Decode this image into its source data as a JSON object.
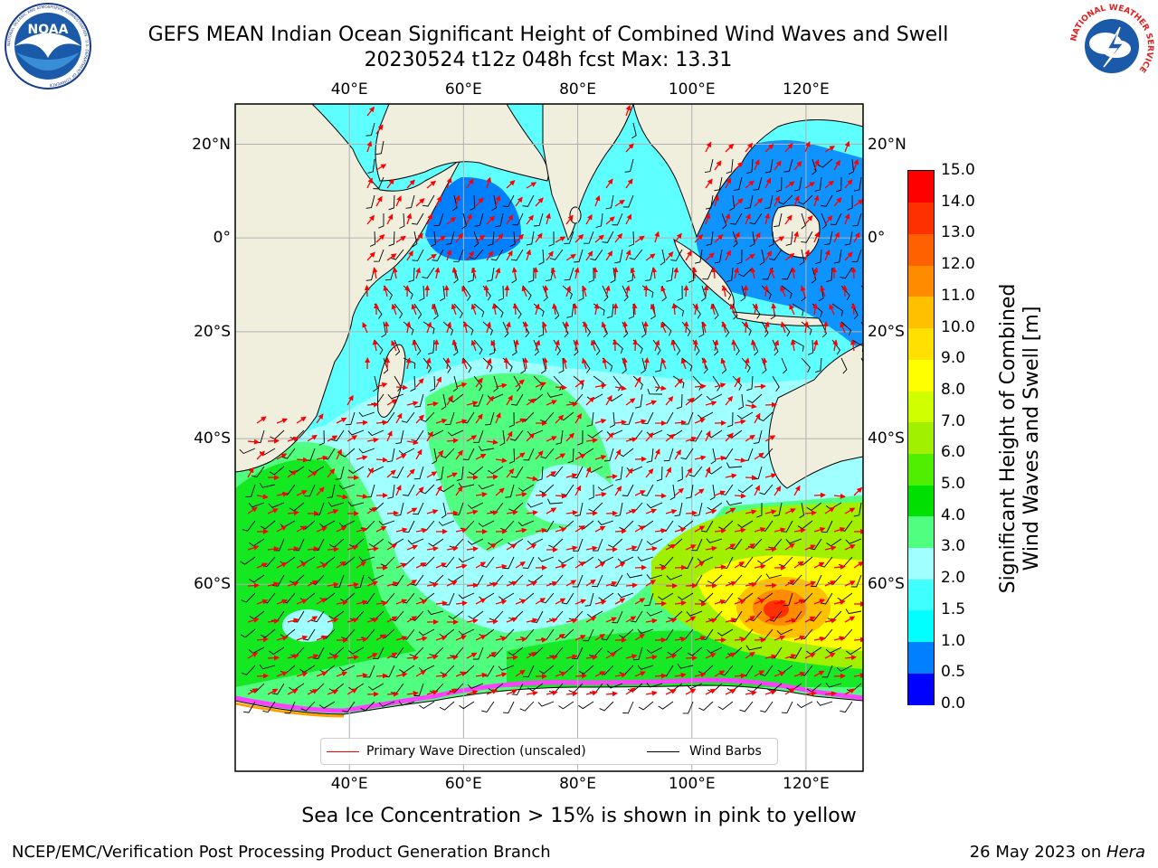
{
  "header": {
    "title_line1": "GEFS MEAN Indian Ocean Significant Height of Combined Wind Waves and Swell",
    "title_line2": "20230524 t12z 048h fcst   Max: 13.31"
  },
  "logos": {
    "left_icon": "noaa-logo-icon",
    "left_text": "NOAA",
    "left_ring_text": "NATIONAL OCEANIC AND ATMOSPHERIC ADMINISTRATION · U.S. DEPARTMENT OF COMMERCE",
    "right_icon": "national-weather-service-logo-icon",
    "right_ring_text": "NATIONAL WEATHER SERVICE"
  },
  "map": {
    "lon_range": [
      20,
      130
    ],
    "lat_range": [
      -75,
      28
    ],
    "top_lon_ticks": [
      "40°E",
      "60°E",
      "80°E",
      "100°E",
      "120°E"
    ],
    "bottom_lon_ticks": [
      "40°E",
      "60°E",
      "80°E",
      "100°E",
      "120°E"
    ],
    "left_lat_ticks": [
      "20°N",
      "0°",
      "20°S",
      "40°S",
      "60°S"
    ],
    "right_lat_ticks": [
      "20°N",
      "0°",
      "20°S",
      "40°S",
      "60°S"
    ],
    "lon_values": [
      40,
      60,
      80,
      100,
      120
    ],
    "lat_values": [
      20,
      0,
      -20,
      -40,
      -60
    ],
    "land_color": "#f0eedc",
    "ice_color": "#ffffff",
    "arrow_color": "#ff0000",
    "barb_color": "#000000"
  },
  "legend": {
    "wave_direction_label": "Primary Wave Direction (unscaled)",
    "wind_barbs_label": "Wind Barbs"
  },
  "colorbar": {
    "title_line1": "Significant Height of Combined",
    "title_line2": "Wind Waves and Swell [m]",
    "ticks": [
      "0.0",
      "0.5",
      "1.0",
      "1.5",
      "2.0",
      "3.0",
      "4.0",
      "5.0",
      "6.0",
      "7.0",
      "8.0",
      "9.0",
      "10.0",
      "11.0",
      "12.0",
      "13.0",
      "14.0",
      "15.0"
    ],
    "colors": [
      "#0000ff",
      "#0080ff",
      "#00ffff",
      "#40ffff",
      "#a0ffff",
      "#50ff80",
      "#00e000",
      "#50ee00",
      "#a0f000",
      "#d0ff00",
      "#ffff00",
      "#ffe000",
      "#ffc000",
      "#ff8c00",
      "#ff6000",
      "#ff3000",
      "#ff0000"
    ]
  },
  "footer": {
    "ice_note": "Sea Ice Concentration > 15% is shown in pink to yellow",
    "left": "NCEP/EMC/Verification Post Processing Product Generation Branch",
    "right_prefix": "26 May 2023 on ",
    "right_host": "Hera"
  }
}
